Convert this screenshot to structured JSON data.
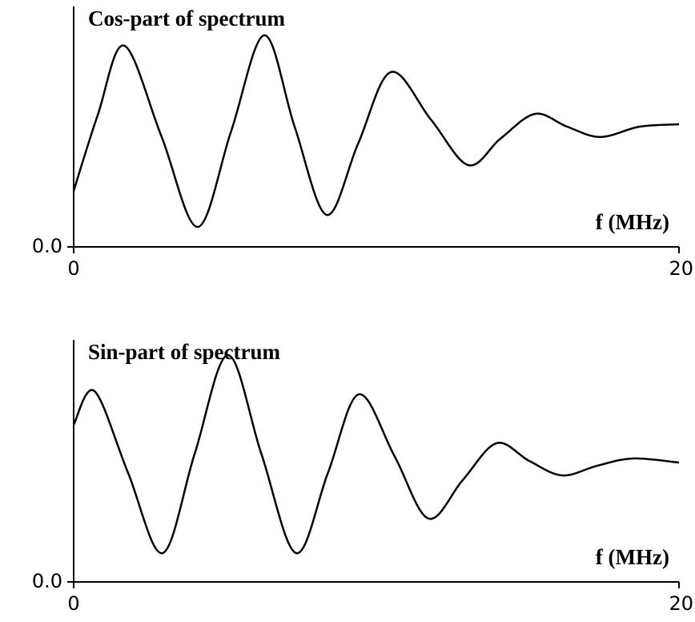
{
  "chart_data": [
    {
      "type": "line",
      "title": "Cos-part of spectrum",
      "x_label": "f (MHz)",
      "x": [
        0,
        0.8,
        1.67,
        2.9,
        4.1,
        5.2,
        6.3,
        7.3,
        8.36,
        9.4,
        10.48,
        11.8,
        13.04,
        14.1,
        15.24,
        16.3,
        17.4,
        18.7,
        20
      ],
      "values": [
        0.233,
        0.55,
        0.837,
        0.46,
        0.083,
        0.48,
        0.88,
        0.5,
        0.133,
        0.43,
        0.727,
        0.53,
        0.34,
        0.45,
        0.553,
        0.5,
        0.457,
        0.5,
        0.51
      ],
      "color": "#000000",
      "xlim": [
        0,
        20
      ],
      "xticks": [
        0,
        20
      ],
      "ylim": [
        0,
        1
      ],
      "yticks": [
        {
          "value": 0,
          "label": "0.0"
        }
      ]
    },
    {
      "type": "line",
      "title": "Sin-part of spectrum",
      "x_label": "f (MHz)",
      "x": [
        0,
        0.69,
        1.8,
        2.94,
        4.0,
        5.1,
        6.2,
        7.35,
        8.4,
        9.42,
        10.6,
        11.72,
        12.85,
        13.97,
        15.05,
        16.14,
        17.3,
        18.47,
        20
      ],
      "values": [
        0.649,
        0.788,
        0.45,
        0.119,
        0.53,
        0.937,
        0.53,
        0.119,
        0.45,
        0.775,
        0.52,
        0.262,
        0.42,
        0.573,
        0.5,
        0.44,
        0.48,
        0.51,
        0.493
      ],
      "color": "#000000",
      "xlim": [
        0,
        20
      ],
      "xticks": [
        0,
        20
      ],
      "ylim": [
        0,
        1
      ],
      "yticks": [
        {
          "value": 0,
          "label": "0.0"
        }
      ]
    }
  ]
}
